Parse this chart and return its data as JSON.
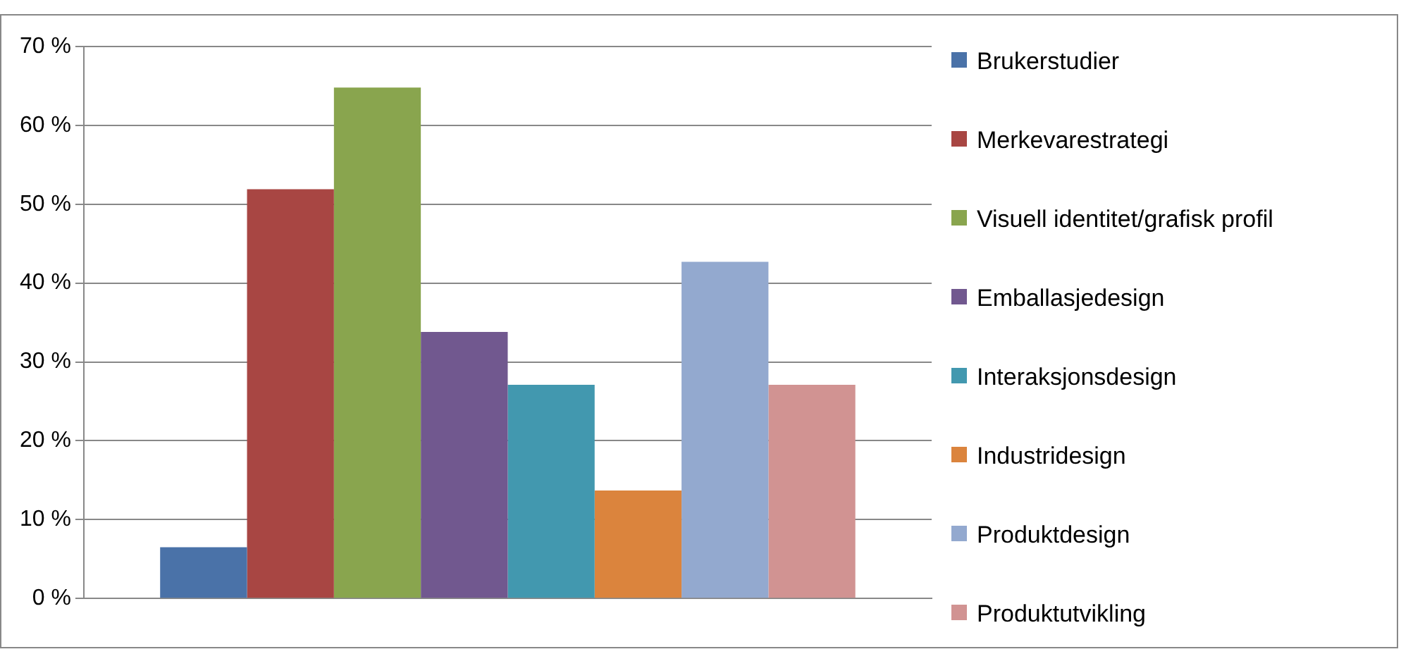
{
  "chart_data": {
    "type": "bar",
    "categories": [
      null
    ],
    "series": [
      {
        "name": "Brukerstudier",
        "color": "#4a72a8",
        "values": [
          6.5
        ]
      },
      {
        "name": "Merkevarestrategi",
        "color": "#a84643",
        "values": [
          51.9
        ]
      },
      {
        "name": "Visuell identitet/grafisk profil",
        "color": "#89a54e",
        "values": [
          64.8
        ]
      },
      {
        "name": "Emballasjedesign",
        "color": "#71588f",
        "values": [
          33.8
        ]
      },
      {
        "name": "Interaksjonsdesign",
        "color": "#4298af",
        "values": [
          27.1
        ]
      },
      {
        "name": "Industridesign",
        "color": "#db843d",
        "values": [
          13.7
        ]
      },
      {
        "name": "Produktdesign",
        "color": "#93a9cf",
        "values": [
          42.7
        ]
      },
      {
        "name": "Produktutvikling",
        "color": "#d19392",
        "values": [
          27.1
        ]
      }
    ],
    "ylim": [
      0,
      70
    ],
    "yticks": [
      {
        "value": 0,
        "label": "0 %"
      },
      {
        "value": 10,
        "label": "10 %"
      },
      {
        "value": 20,
        "label": "20 %"
      },
      {
        "value": 30,
        "label": "30 %"
      },
      {
        "value": 40,
        "label": "40 %"
      },
      {
        "value": 50,
        "label": "50 %"
      },
      {
        "value": 60,
        "label": "60 %"
      },
      {
        "value": 70,
        "label": "70 %"
      }
    ],
    "grid": "y",
    "legend": "right"
  }
}
